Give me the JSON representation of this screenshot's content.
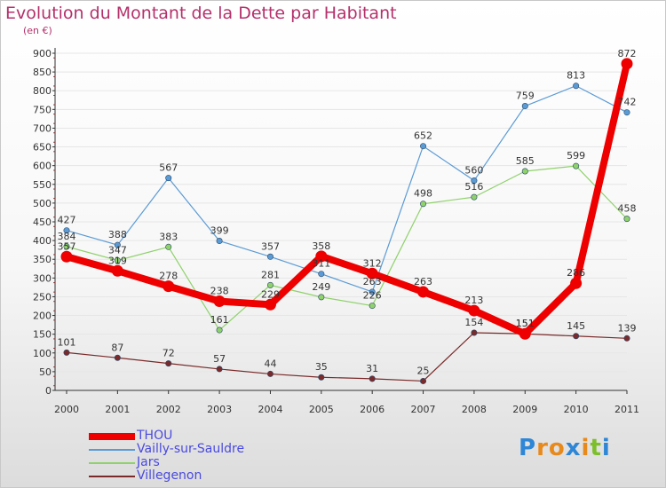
{
  "title": "Evolution du Montant de la Dette par Habitant",
  "subtitle": "(en €)",
  "logo_text": "Proxiti",
  "colors": {
    "title": "#b5306b",
    "axis": "#333333",
    "grid": "#e6e6e6",
    "legend_text": "#4a4ae0"
  },
  "chart_data": {
    "type": "line",
    "title": "Evolution du Montant de la Dette par Habitant",
    "subtitle": "(en €)",
    "xlabel": "",
    "ylabel": "",
    "ylim": [
      0,
      900
    ],
    "yticks": [
      0,
      50,
      100,
      150,
      200,
      250,
      300,
      350,
      400,
      450,
      500,
      550,
      600,
      650,
      700,
      750,
      800,
      850,
      900
    ],
    "x": [
      "2000",
      "2001",
      "2002",
      "2003",
      "2004",
      "2005",
      "2006",
      "2007",
      "2008",
      "2009",
      "2010",
      "2011"
    ],
    "grid": true,
    "legend_position": "bottom-left",
    "series": [
      {
        "name": "THOU",
        "color": "#ee0000",
        "width": 8,
        "values": [
          357,
          319,
          278,
          238,
          229,
          358,
          312,
          263,
          213,
          151,
          286,
          872
        ],
        "labels": [
          "357",
          "319",
          "278",
          "238",
          "229",
          "358",
          "312",
          "263",
          "213",
          "151",
          "286",
          "872"
        ]
      },
      {
        "name": "Vailly-sur-Sauldre",
        "color": "#5b9bd5",
        "width": 1.2,
        "values": [
          427,
          388,
          567,
          399,
          357,
          311,
          263,
          652,
          560,
          759,
          813,
          742
        ],
        "labels": [
          "427",
          "388",
          "567",
          "399",
          "357",
          "311",
          "263",
          "652",
          "560",
          "759",
          "813",
          "742"
        ]
      },
      {
        "name": "Jars",
        "color": "#8fd16a",
        "width": 1.2,
        "values": [
          384,
          347,
          383,
          161,
          281,
          249,
          226,
          498,
          516,
          585,
          599,
          458
        ],
        "labels": [
          "384",
          "347",
          "383",
          "161",
          "281",
          "249",
          "226",
          "498",
          "516",
          "585",
          "599",
          "458"
        ]
      },
      {
        "name": "Villegenon",
        "color": "#7a2a2a",
        "width": 1.2,
        "values": [
          101,
          87,
          72,
          57,
          44,
          35,
          31,
          25,
          154,
          151,
          145,
          139
        ],
        "labels": [
          "101",
          "87",
          "72",
          "57",
          "44",
          "35",
          "31",
          "25",
          "154",
          "151",
          "145",
          "139"
        ]
      }
    ]
  }
}
